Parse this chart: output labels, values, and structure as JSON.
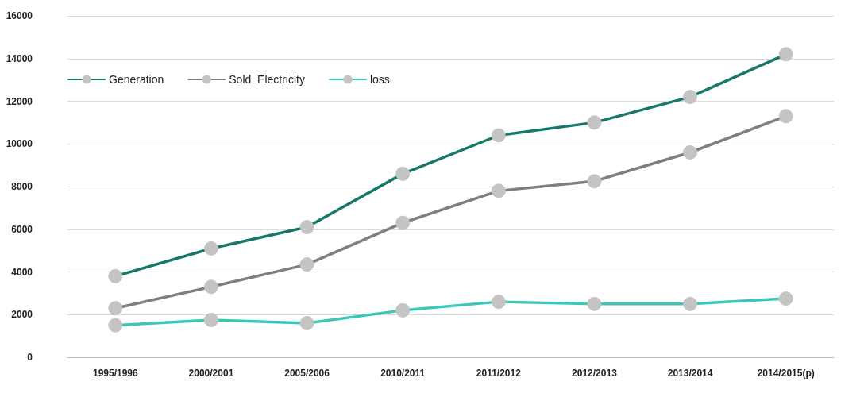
{
  "chart_data": {
    "type": "line",
    "categories": [
      "1995/1996",
      "2000/2001",
      "2005/2006",
      "2010/2011",
      "2011/2012",
      "2012/2013",
      "2013/2014",
      "2014/2015(p)"
    ],
    "series": [
      {
        "name": "Generation",
        "color": "#17786a",
        "values": [
          3800,
          5100,
          6100,
          8600,
          10400,
          11000,
          12200,
          14200
        ]
      },
      {
        "name": "Sold  Electricity",
        "color": "#7f7f7f",
        "values": [
          2300,
          3300,
          4350,
          6300,
          7800,
          8250,
          9600,
          11300
        ]
      },
      {
        "name": "loss",
        "color": "#3cc8b8",
        "values": [
          1500,
          1750,
          1600,
          2200,
          2600,
          2500,
          2500,
          2750
        ]
      }
    ],
    "ylim": [
      0,
      16000
    ],
    "yticks": [
      0,
      2000,
      4000,
      6000,
      8000,
      10000,
      12000,
      14000,
      16000
    ],
    "grid": "y",
    "legend": "top left",
    "marker": "circle",
    "line_style": "solid"
  }
}
